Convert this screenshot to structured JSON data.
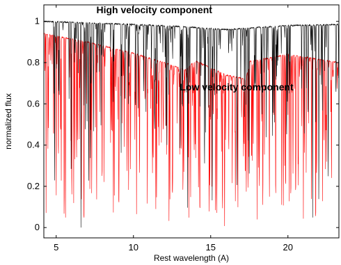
{
  "chart_data": {
    "type": "line",
    "xlabel": "Rest wavelength (A)",
    "ylabel": "normalized flux",
    "xlim": [
      4.2,
      23.3
    ],
    "ylim": [
      -0.05,
      1.08
    ],
    "x_ticks": [
      5,
      10,
      15,
      20
    ],
    "y_ticks": [
      0,
      0.2,
      0.4,
      0.6,
      0.8,
      1
    ],
    "x_tick_labels": [
      "5",
      "10",
      "15",
      "20"
    ],
    "y_tick_labels": [
      "0",
      "0.2",
      "0.4",
      "0.6",
      "0.8",
      "1"
    ],
    "grid": false,
    "legend": "none",
    "annotations": [
      {
        "text": "High velocity component",
        "x": 7.6,
        "y": 1.04
      },
      {
        "text": "Low velocity component",
        "x": 13.0,
        "y": 0.665
      }
    ],
    "series": [
      {
        "color": "#000000",
        "continuum": [
          [
            4.2,
            1.0
          ],
          [
            10,
            0.985
          ],
          [
            13,
            0.975
          ],
          [
            16,
            0.96
          ],
          [
            20,
            0.98
          ],
          [
            23.3,
            0.985
          ]
        ],
        "absorption_lines": [
          {
            "x": 4.9,
            "depth": 0.85
          },
          {
            "x": 6.6,
            "depth": 1.0
          },
          {
            "x": 7.1,
            "depth": 0.85
          },
          {
            "x": 7.9,
            "depth": 0.55
          },
          {
            "x": 9.2,
            "depth": 0.7
          },
          {
            "x": 11.4,
            "depth": 0.25
          },
          {
            "x": 12.1,
            "depth": 0.55
          },
          {
            "x": 13.5,
            "depth": 0.9
          },
          {
            "x": 14.6,
            "depth": 0.6
          },
          {
            "x": 15.1,
            "depth": 0.95
          },
          {
            "x": 16.7,
            "depth": 0.8
          },
          {
            "x": 17.5,
            "depth": 0.7
          },
          {
            "x": 18.6,
            "depth": 0.55
          },
          {
            "x": 19.0,
            "depth": 0.6
          },
          {
            "x": 21.6,
            "depth": 0.95
          },
          {
            "x": 22.0,
            "depth": 0.95
          },
          {
            "x": 22.6,
            "depth": 0.35
          }
        ]
      },
      {
        "color": "#ff0000",
        "continuum": [
          [
            4.2,
            0.94
          ],
          [
            7,
            0.9
          ],
          [
            10,
            0.845
          ],
          [
            12,
            0.8
          ],
          [
            13.4,
            0.765
          ],
          [
            14.0,
            0.81
          ],
          [
            16,
            0.74
          ],
          [
            17.3,
            0.72
          ],
          [
            17.5,
            0.805
          ],
          [
            20,
            0.84
          ],
          [
            23.3,
            0.8
          ]
        ],
        "absorption_lines": [
          {
            "x": 5.0,
            "depth": 0.92
          },
          {
            "x": 5.6,
            "depth": 0.8
          },
          {
            "x": 6.2,
            "depth": 0.7
          },
          {
            "x": 6.8,
            "depth": 0.95
          },
          {
            "x": 7.3,
            "depth": 0.9
          },
          {
            "x": 8.1,
            "depth": 0.75
          },
          {
            "x": 8.7,
            "depth": 0.9
          },
          {
            "x": 9.4,
            "depth": 0.6
          },
          {
            "x": 10.2,
            "depth": 0.92
          },
          {
            "x": 10.9,
            "depth": 0.95
          },
          {
            "x": 11.5,
            "depth": 0.9
          },
          {
            "x": 12.3,
            "depth": 0.95
          },
          {
            "x": 13.0,
            "depth": 0.6
          },
          {
            "x": 13.7,
            "depth": 0.9
          },
          {
            "x": 14.3,
            "depth": 0.95
          },
          {
            "x": 14.9,
            "depth": 0.98
          },
          {
            "x": 15.4,
            "depth": 1.0
          },
          {
            "x": 15.9,
            "depth": 0.95
          },
          {
            "x": 16.6,
            "depth": 0.9
          },
          {
            "x": 17.3,
            "depth": 0.6
          },
          {
            "x": 18.0,
            "depth": 0.95
          },
          {
            "x": 18.8,
            "depth": 0.9
          },
          {
            "x": 19.6,
            "depth": 0.95
          },
          {
            "x": 20.5,
            "depth": 0.85
          },
          {
            "x": 21.0,
            "depth": 0.95
          },
          {
            "x": 21.8,
            "depth": 0.95
          },
          {
            "x": 22.5,
            "depth": 0.6
          }
        ]
      }
    ]
  }
}
